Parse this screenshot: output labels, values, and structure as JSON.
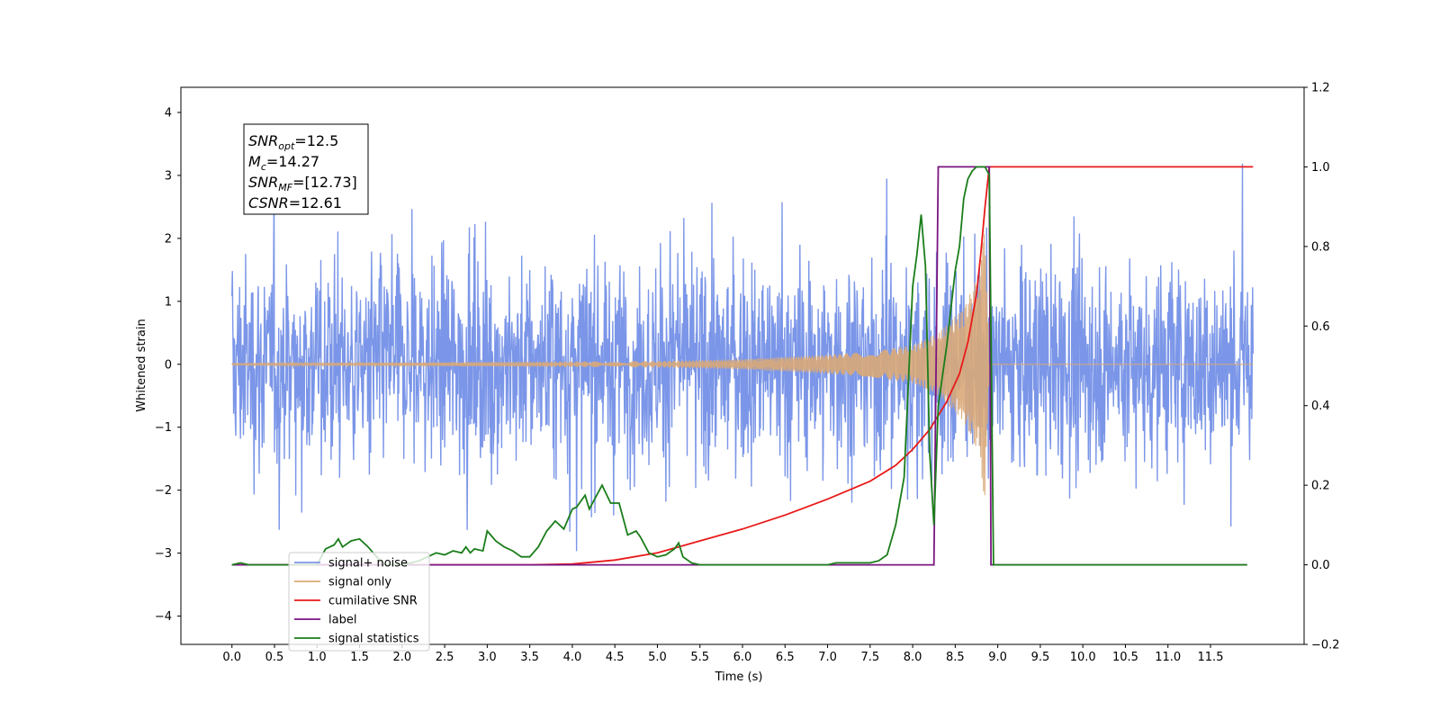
{
  "chart_data": {
    "type": "line",
    "xlabel": "Time (s)",
    "ylabel": "Whitened strain",
    "x_ticks": [
      "0.0",
      "0.5",
      "1.0",
      "1.5",
      "2.0",
      "2.5",
      "3.0",
      "3.5",
      "4.0",
      "4.5",
      "5.0",
      "5.5",
      "6.0",
      "6.5",
      "7.0",
      "7.5",
      "8.0",
      "8.5",
      "9.0",
      "9.5",
      "10.0",
      "10.5",
      "11.0",
      "11.5"
    ],
    "x_tick_values": [
      0,
      0.5,
      1,
      1.5,
      2,
      2.5,
      3,
      3.5,
      4,
      4.5,
      5,
      5.5,
      6,
      6.5,
      7,
      7.5,
      8,
      8.5,
      9,
      9.5,
      10,
      10.5,
      11,
      11.5
    ],
    "xlim": [
      -0.6,
      12.6
    ],
    "ylim_left": [
      -4.45,
      4.4
    ],
    "y_ticks_left": [
      4,
      3,
      2,
      1,
      0,
      -1,
      -2,
      -3,
      -4
    ],
    "ylim_right": [
      -0.2,
      1.2
    ],
    "y_ticks_right": [
      "1.2",
      "1.0",
      "0.8",
      "0.6",
      "0.4",
      "0.2",
      "0.0",
      "−0.2"
    ],
    "y_tick_values_right": [
      1.2,
      1.0,
      0.8,
      0.6,
      0.4,
      0.2,
      0.0,
      -0.2
    ],
    "grid": false,
    "legend_placement": "lower-left",
    "annotation": {
      "lines": [
        {
          "main": "SNR",
          "sub": "opt",
          "rest": "=12.5"
        },
        {
          "main": "M",
          "sub": "c",
          "rest": "=14.27"
        },
        {
          "main": "SNR",
          "sub": "MF",
          "rest": "=[12.73]"
        },
        {
          "main": "CSNR",
          "sub": "",
          "rest": "=12.61"
        }
      ]
    },
    "series": [
      {
        "name": "signal+ noise",
        "color": "#7b96e8",
        "axis": "left",
        "description_level": "noise amplitude ~ ±2.5, peaks ~ ±4",
        "x_range": [
          0,
          12.0
        ],
        "envelope": 2.5
      },
      {
        "name": "signal only",
        "color": "#d9a878",
        "axis": "left",
        "x_range": [
          0,
          12.0
        ],
        "envelope_points": [
          [
            0,
            0.01
          ],
          [
            5,
            0.05
          ],
          [
            6,
            0.08
          ],
          [
            7,
            0.15
          ],
          [
            7.5,
            0.2
          ],
          [
            8,
            0.3
          ],
          [
            8.3,
            0.5
          ],
          [
            8.6,
            0.9
          ],
          [
            8.8,
            1.5
          ],
          [
            8.85,
            2.5
          ],
          [
            8.9,
            0.0
          ],
          [
            12.0,
            0.0
          ]
        ]
      },
      {
        "name": "cumilative SNR",
        "color": "#e81a1a",
        "axis": "right",
        "points": [
          [
            0,
            0
          ],
          [
            3.5,
            0
          ],
          [
            4,
            0.002
          ],
          [
            4.5,
            0.012
          ],
          [
            5,
            0.03
          ],
          [
            5.5,
            0.06
          ],
          [
            6,
            0.09
          ],
          [
            6.5,
            0.125
          ],
          [
            7,
            0.165
          ],
          [
            7.5,
            0.21
          ],
          [
            7.8,
            0.25
          ],
          [
            8,
            0.29
          ],
          [
            8.2,
            0.34
          ],
          [
            8.4,
            0.41
          ],
          [
            8.55,
            0.48
          ],
          [
            8.65,
            0.56
          ],
          [
            8.75,
            0.68
          ],
          [
            8.8,
            0.78
          ],
          [
            8.85,
            0.9
          ],
          [
            8.9,
            1.0
          ],
          [
            12.0,
            1.0
          ]
        ]
      },
      {
        "name": "label",
        "color": "#7a1580",
        "axis": "right",
        "points": [
          [
            0,
            0
          ],
          [
            8.25,
            0
          ],
          [
            8.3,
            1.0
          ],
          [
            8.9,
            1.0
          ],
          [
            8.92,
            0
          ],
          [
            11.93,
            0
          ]
        ]
      },
      {
        "name": "signal statistics",
        "color": "#1a7d1a",
        "axis": "right",
        "points": [
          [
            0,
            0
          ],
          [
            0.1,
            0.005
          ],
          [
            0.2,
            0
          ],
          [
            1.0,
            0
          ],
          [
            1.1,
            0.04
          ],
          [
            1.2,
            0.05
          ],
          [
            1.25,
            0.065
          ],
          [
            1.3,
            0.045
          ],
          [
            1.4,
            0.06
          ],
          [
            1.5,
            0.065
          ],
          [
            1.6,
            0.045
          ],
          [
            1.7,
            0.02
          ],
          [
            1.8,
            0
          ],
          [
            2.0,
            0
          ],
          [
            2.1,
            0.005
          ],
          [
            2.2,
            0.01
          ],
          [
            2.3,
            0.02
          ],
          [
            2.4,
            0.03
          ],
          [
            2.5,
            0.025
          ],
          [
            2.6,
            0.035
          ],
          [
            2.7,
            0.03
          ],
          [
            2.75,
            0.045
          ],
          [
            2.8,
            0.03
          ],
          [
            2.85,
            0.04
          ],
          [
            2.95,
            0.035
          ],
          [
            3.0,
            0.085
          ],
          [
            3.1,
            0.06
          ],
          [
            3.2,
            0.045
          ],
          [
            3.3,
            0.035
          ],
          [
            3.4,
            0.02
          ],
          [
            3.5,
            0.02
          ],
          [
            3.6,
            0.045
          ],
          [
            3.7,
            0.085
          ],
          [
            3.8,
            0.11
          ],
          [
            3.9,
            0.09
          ],
          [
            4.0,
            0.14
          ],
          [
            4.05,
            0.145
          ],
          [
            4.15,
            0.175
          ],
          [
            4.2,
            0.14
          ],
          [
            4.25,
            0.16
          ],
          [
            4.35,
            0.2
          ],
          [
            4.45,
            0.155
          ],
          [
            4.55,
            0.155
          ],
          [
            4.65,
            0.075
          ],
          [
            4.75,
            0.085
          ],
          [
            4.8,
            0.07
          ],
          [
            4.9,
            0.03
          ],
          [
            5.0,
            0.02
          ],
          [
            5.1,
            0.025
          ],
          [
            5.2,
            0.04
          ],
          [
            5.25,
            0.055
          ],
          [
            5.3,
            0.02
          ],
          [
            5.4,
            0.005
          ],
          [
            5.5,
            0
          ],
          [
            7.0,
            0
          ],
          [
            7.1,
            0.005
          ],
          [
            7.5,
            0.005
          ],
          [
            7.6,
            0.01
          ],
          [
            7.7,
            0.025
          ],
          [
            7.8,
            0.1
          ],
          [
            7.9,
            0.22
          ],
          [
            8.0,
            0.7
          ],
          [
            8.05,
            0.78
          ],
          [
            8.1,
            0.88
          ],
          [
            8.15,
            0.75
          ],
          [
            8.2,
            0.28
          ],
          [
            8.25,
            0.1
          ],
          [
            8.3,
            0.4
          ],
          [
            8.4,
            0.55
          ],
          [
            8.5,
            0.74
          ],
          [
            8.55,
            0.8
          ],
          [
            8.6,
            0.92
          ],
          [
            8.65,
            0.97
          ],
          [
            8.7,
            0.99
          ],
          [
            8.75,
            1.0
          ],
          [
            8.85,
            1.0
          ],
          [
            8.9,
            0.98
          ],
          [
            8.95,
            0
          ],
          [
            11.93,
            0
          ]
        ]
      }
    ]
  }
}
